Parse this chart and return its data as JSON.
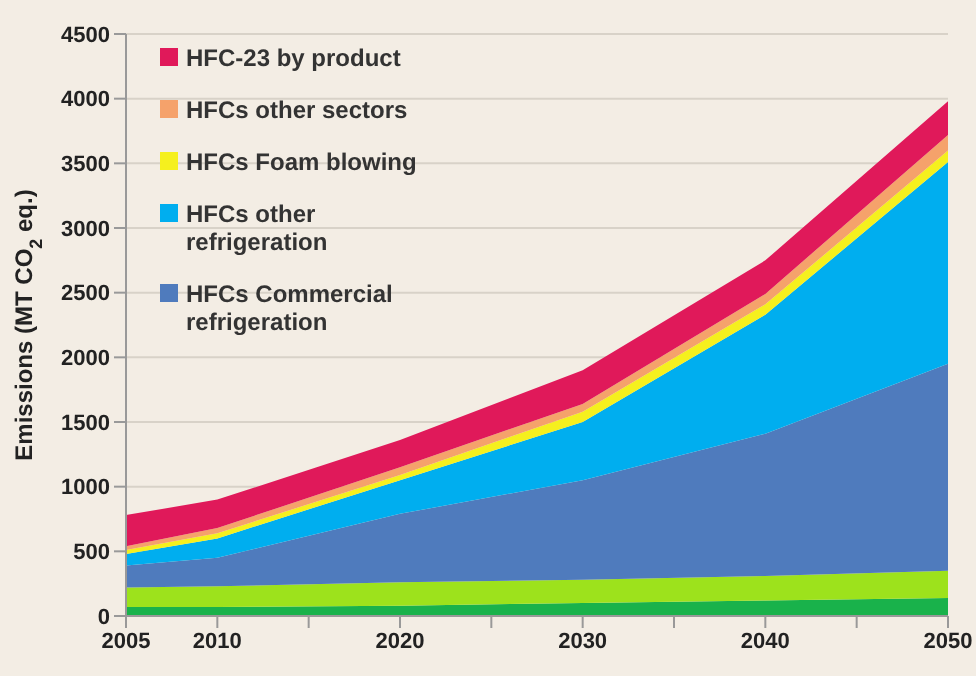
{
  "chart_data": {
    "type": "area",
    "stacked": true,
    "ylabel": "Emissions (MT CO$_{2}$ eq.)",
    "x": [
      2005,
      2010,
      2020,
      2030,
      2040,
      2050
    ],
    "xlim": [
      2005,
      2050
    ],
    "xticks": [
      2005,
      2010,
      {
        "value": 2015,
        "label": null
      },
      2020,
      {
        "value": 2025,
        "label": null
      },
      2030,
      {
        "value": 2035,
        "label": null
      },
      2040,
      {
        "value": 2045,
        "label": null
      },
      2050
    ],
    "ylim": [
      0,
      4500
    ],
    "yticks": [
      0,
      500,
      1000,
      1500,
      2000,
      2500,
      3000,
      3500,
      4000,
      4500
    ],
    "grid": "y",
    "legend": "top left",
    "series": [
      {
        "color": "#19b24b",
        "values": [
          70,
          70,
          80,
          100,
          120,
          140
        ]
      },
      {
        "color": "#9de21c",
        "values": [
          150,
          160,
          180,
          180,
          190,
          210
        ]
      },
      {
        "name": "HFCs Commercial refrigeration",
        "color": "#4f7bbd",
        "values": [
          170,
          220,
          530,
          770,
          1100,
          1600
        ]
      },
      {
        "name": "HFCs other refrigeration",
        "color": "#00aeef",
        "values": [
          90,
          150,
          260,
          450,
          920,
          1560
        ]
      },
      {
        "name": "HFCs Foam blowing",
        "color": "#f5f01e",
        "values": [
          30,
          40,
          40,
          80,
          80,
          90
        ]
      },
      {
        "name": "HFCs other sectors",
        "color": "#f5a26b",
        "values": [
          30,
          40,
          60,
          60,
          80,
          120
        ]
      },
      {
        "name": "HFC-23 by product",
        "color": "#e0195a",
        "values": [
          240,
          220,
          210,
          260,
          260,
          260
        ]
      }
    ]
  }
}
